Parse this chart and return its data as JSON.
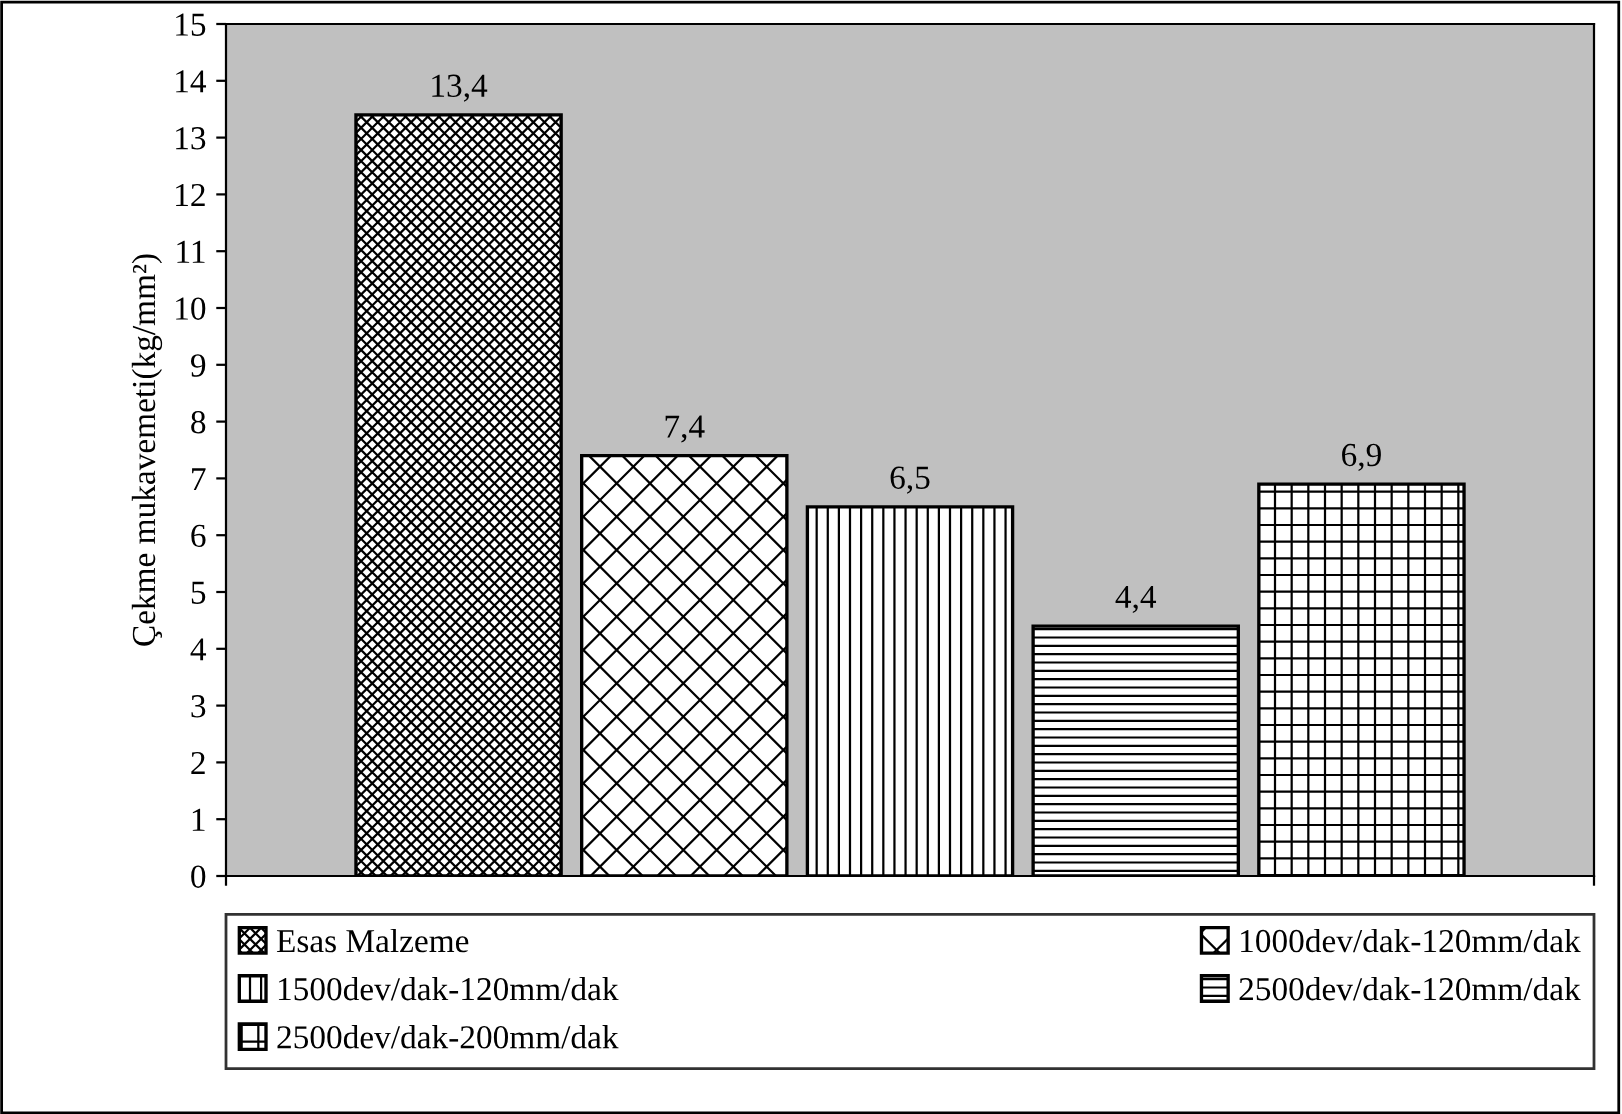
{
  "chart_data": {
    "type": "bar",
    "ylabel": "Çekme mukavemeti(kg/mm²)",
    "categories": [
      null
    ],
    "series": [
      {
        "name": "Esas Malzeme",
        "color": "#000000",
        "values": [
          13.4
        ],
        "value_labels": [
          "13,4"
        ]
      },
      {
        "name": "1000dev/dak-120mm/dak",
        "color": "#000000",
        "values": [
          7.4
        ],
        "value_labels": [
          "7,4"
        ]
      },
      {
        "name": "1500dev/dak-120mm/dak",
        "color": "#000000",
        "values": [
          6.5
        ],
        "value_labels": [
          "6,5"
        ]
      },
      {
        "name": "2500dev/dak-120mm/dak",
        "color": "#000000",
        "values": [
          4.4
        ],
        "value_labels": [
          "4,4"
        ]
      },
      {
        "name": "2500dev/dak-200mm/dak",
        "color": "#000000",
        "values": [
          6.9
        ],
        "value_labels": [
          "6,9"
        ]
      }
    ],
    "ylim": [
      0,
      15
    ],
    "yticks": [
      0,
      1,
      2,
      3,
      4,
      5,
      6,
      7,
      8,
      9,
      10,
      11,
      12,
      13,
      14,
      15
    ],
    "grid": false,
    "legend": "bottom"
  }
}
